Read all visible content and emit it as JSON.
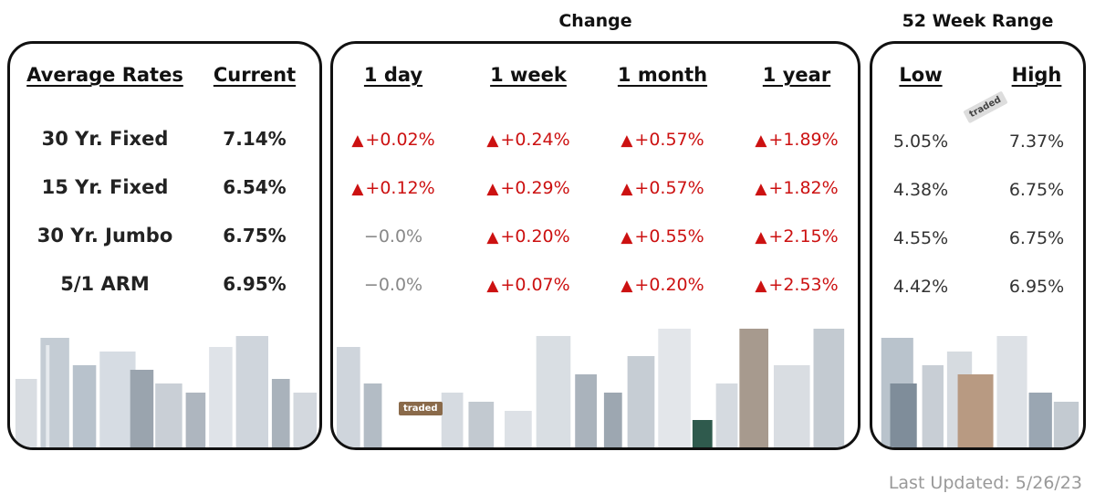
{
  "headings": {
    "change": "Change",
    "range": "52 Week Range"
  },
  "left_panel": {
    "col1_header": "Average Rates",
    "col2_header": "Current",
    "rows": [
      {
        "label": "30 Yr. Fixed",
        "current": "7.14%"
      },
      {
        "label": "15 Yr. Fixed",
        "current": "6.54%"
      },
      {
        "label": "30 Yr. Jumbo",
        "current": "6.75%"
      },
      {
        "label": "5/1 ARM",
        "current": "6.95%"
      }
    ]
  },
  "change_panel": {
    "headers": [
      "1 day",
      "1 week",
      "1 month",
      "1 year"
    ],
    "rows": [
      [
        {
          "value": "+0.02%",
          "dir": "up"
        },
        {
          "value": "+0.24%",
          "dir": "up"
        },
        {
          "value": "+0.57%",
          "dir": "up"
        },
        {
          "value": "+1.89%",
          "dir": "up"
        }
      ],
      [
        {
          "value": "+0.12%",
          "dir": "up"
        },
        {
          "value": "+0.29%",
          "dir": "up"
        },
        {
          "value": "+0.57%",
          "dir": "up"
        },
        {
          "value": "+1.82%",
          "dir": "up"
        }
      ],
      [
        {
          "value": "−0.0%",
          "dir": "flat"
        },
        {
          "value": "+0.20%",
          "dir": "up"
        },
        {
          "value": "+0.55%",
          "dir": "up"
        },
        {
          "value": "+2.15%",
          "dir": "up"
        }
      ],
      [
        {
          "value": "−0.0%",
          "dir": "flat"
        },
        {
          "value": "+0.07%",
          "dir": "up"
        },
        {
          "value": "+0.20%",
          "dir": "up"
        },
        {
          "value": "+2.53%",
          "dir": "up"
        }
      ]
    ]
  },
  "range_panel": {
    "headers": [
      "Low",
      "High"
    ],
    "rows": [
      {
        "low": "5.05%",
        "high": "7.37%"
      },
      {
        "low": "4.38%",
        "high": "6.75%"
      },
      {
        "low": "4.55%",
        "high": "6.75%"
      },
      {
        "low": "4.42%",
        "high": "6.95%"
      }
    ]
  },
  "branding": {
    "tag1": "traded",
    "tag2": "traded"
  },
  "footer": {
    "last_updated": "Last Updated: 5/26/23"
  },
  "colors": {
    "up": "#cc1111",
    "flat": "#888888",
    "border": "#111111"
  },
  "icons": {
    "up": "triangle-up-icon"
  }
}
